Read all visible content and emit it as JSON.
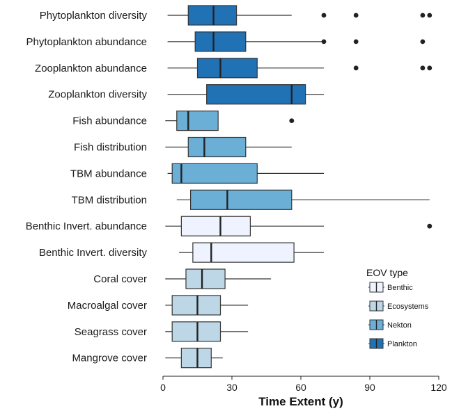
{
  "chart_data": {
    "type": "boxplot",
    "orientation": "horizontal",
    "xlabel": "Time Extent (y)",
    "xlim": [
      0,
      120
    ],
    "xticks": [
      0,
      30,
      60,
      90,
      120
    ],
    "grid": false,
    "legend": {
      "title": "EOV type",
      "placement": "bottom-right",
      "entries": [
        {
          "name": "Benthic",
          "color": "#eff3ff"
        },
        {
          "name": "Ecosystems",
          "color": "#bdd7e7"
        },
        {
          "name": "Nekton",
          "color": "#6baed6"
        },
        {
          "name": "Plankton",
          "color": "#2171b5"
        }
      ]
    },
    "categories": [
      {
        "label": "Phytoplankton diversity",
        "group": "Plankton",
        "whisker_low": 2,
        "q1": 11,
        "median": 22,
        "q3": 32,
        "whisker_high": 56,
        "outliers": [
          70,
          84,
          113,
          116
        ]
      },
      {
        "label": "Phytoplankton abundance",
        "group": "Plankton",
        "whisker_low": 2,
        "q1": 14,
        "median": 22,
        "q3": 36,
        "whisker_high": 70,
        "outliers": [
          70,
          84,
          113
        ]
      },
      {
        "label": "Zooplankton abundance",
        "group": "Plankton",
        "whisker_low": 2,
        "q1": 15,
        "median": 25,
        "q3": 41,
        "whisker_high": 70,
        "outliers": [
          84,
          113,
          116
        ]
      },
      {
        "label": "Zooplankton diversity",
        "group": "Plankton",
        "whisker_low": 2,
        "q1": 19,
        "median": 56,
        "q3": 62,
        "whisker_high": 70,
        "outliers": []
      },
      {
        "label": "Fish abundance",
        "group": "Nekton",
        "whisker_low": 1,
        "q1": 6,
        "median": 11,
        "q3": 24,
        "whisker_high": 24,
        "outliers": [
          56
        ]
      },
      {
        "label": "Fish distribution",
        "group": "Nekton",
        "whisker_low": 1,
        "q1": 11,
        "median": 18,
        "q3": 36,
        "whisker_high": 56,
        "outliers": []
      },
      {
        "label": "TBM abundance",
        "group": "Nekton",
        "whisker_low": 2,
        "q1": 4,
        "median": 8,
        "q3": 41,
        "whisker_high": 70,
        "outliers": []
      },
      {
        "label": "TBM distribution",
        "group": "Nekton",
        "whisker_low": 6,
        "q1": 12,
        "median": 28,
        "q3": 56,
        "whisker_high": 116,
        "outliers": []
      },
      {
        "label": "Benthic Invert. abundance",
        "group": "Benthic",
        "whisker_low": 1,
        "q1": 8,
        "median": 25,
        "q3": 38,
        "whisker_high": 70,
        "outliers": [
          116
        ]
      },
      {
        "label": "Benthic Invert. diversity",
        "group": "Benthic",
        "whisker_low": 7,
        "q1": 13,
        "median": 21,
        "q3": 57,
        "whisker_high": 70,
        "outliers": []
      },
      {
        "label": "Coral cover",
        "group": "Ecosystems",
        "whisker_low": 1,
        "q1": 10,
        "median": 17,
        "q3": 27,
        "whisker_high": 47,
        "outliers": []
      },
      {
        "label": "Macroalgal cover",
        "group": "Ecosystems",
        "whisker_low": 1,
        "q1": 4,
        "median": 15,
        "q3": 25,
        "whisker_high": 37,
        "outliers": []
      },
      {
        "label": "Seagrass cover",
        "group": "Ecosystems",
        "whisker_low": 1,
        "q1": 4,
        "median": 15,
        "q3": 25,
        "whisker_high": 37,
        "outliers": []
      },
      {
        "label": "Mangrove cover",
        "group": "Ecosystems",
        "whisker_low": 1,
        "q1": 8,
        "median": 15,
        "q3": 21,
        "whisker_high": 26,
        "outliers": []
      }
    ]
  }
}
